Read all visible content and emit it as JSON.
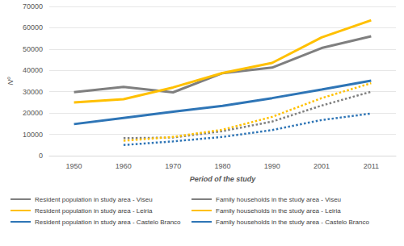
{
  "chart_data": {
    "type": "line",
    "x_label": "Period of the study",
    "y_label": "Nº",
    "categories": [
      "1950",
      "1960",
      "1970",
      "1980",
      "1990",
      "2001",
      "2011"
    ],
    "ylim": [
      0,
      70000
    ],
    "yticks": [
      0,
      10000,
      20000,
      30000,
      40000,
      50000,
      60000,
      70000
    ],
    "grid": true,
    "legend": "bottom",
    "marker": "none",
    "series": [
      {
        "name": "Resident population in study area - Viseu",
        "color": "#7f7f7f",
        "line_style": "solid",
        "values": [
          29800,
          32300,
          29700,
          38700,
          41300,
          50500,
          56000
        ]
      },
      {
        "name": "Family households in the study area - Viseu",
        "color": "#7f7f7f",
        "line_style": "dotted",
        "values": [
          null,
          8200,
          8500,
          11500,
          16000,
          23500,
          30000
        ]
      },
      {
        "name": "Resident population in study area - Leiria",
        "color": "#ffc000",
        "line_style": "solid",
        "values": [
          25000,
          26500,
          32000,
          38800,
          43500,
          55500,
          63500
        ]
      },
      {
        "name": "Family households in the study area - Leiria",
        "color": "#ffc000",
        "line_style": "dotted",
        "values": [
          null,
          7000,
          8800,
          12200,
          18200,
          27000,
          34000
        ]
      },
      {
        "name": "Resident population in study area - Castelo Branco",
        "color": "#2e75b6",
        "line_style": "solid",
        "values": [
          14800,
          17700,
          20600,
          23400,
          27000,
          31000,
          35200
        ]
      },
      {
        "name": "Family households in the study area - Castelo Branco",
        "color": "#2e75b6",
        "line_style": "dotted",
        "values": [
          null,
          5000,
          6700,
          8800,
          12000,
          16700,
          19800
        ]
      }
    ]
  }
}
